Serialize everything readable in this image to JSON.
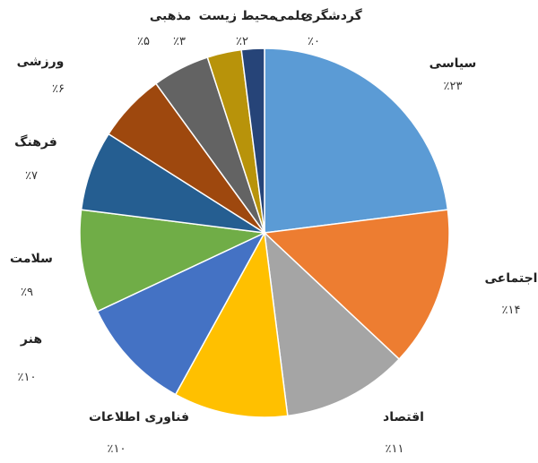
{
  "chart_data": {
    "type": "pie",
    "start": "top",
    "direction": "clockwise",
    "categories": [
      "سیاسی",
      "اجتماعی",
      "اقتصاد",
      "فناوری اطلاعات",
      "هنر",
      "سلامت",
      "فرهنگ",
      "ورزشی",
      "مذهبی",
      "محیط زیست",
      "علمی",
      "گردشگری"
    ],
    "values": [
      23,
      14,
      11,
      10,
      10,
      9,
      7,
      6,
      5,
      3,
      2,
      0
    ],
    "value_labels": [
      "٪۲۳",
      "٪۱۴",
      "٪۱۱",
      "٪۱۰",
      "٪۱۰",
      "٪۹",
      "٪۷",
      "٪۶",
      "٪۵",
      "٪۳",
      "٪۲",
      "٪۰"
    ],
    "colors": [
      "#5B9BD5",
      "#ED7D31",
      "#A5A5A5",
      "#FFC000",
      "#4472C4",
      "#70AD47",
      "#255E91",
      "#9E480E",
      "#636363",
      "#B8930A",
      "#264478",
      "#1F3864"
    ]
  }
}
